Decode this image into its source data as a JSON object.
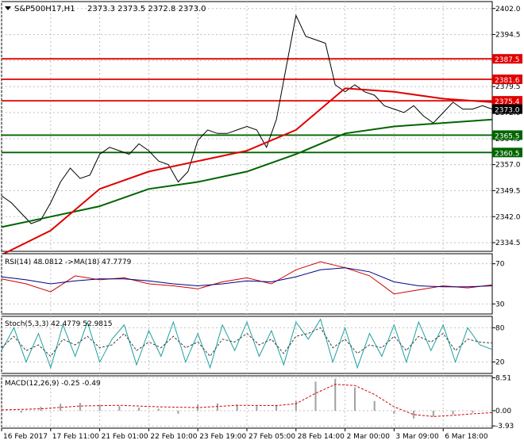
{
  "window_title": {
    "symbol_tf": "S&P500H17,H1",
    "ohlc": "2373.3 2373.5 2372.8 2373.0"
  },
  "chart_data": [
    {
      "type": "line",
      "panel": "price",
      "ylim": [
        2332,
        2404
      ],
      "yticks": [
        2402.0,
        2394.5,
        2387.0,
        2379.5,
        2372.0,
        2364.5,
        2357.0,
        2349.5,
        2342.0,
        2334.5
      ],
      "series": [
        {
          "key": "close",
          "color": "#000000",
          "x": [
            0,
            4,
            8,
            12,
            16,
            20,
            24,
            28,
            32,
            36,
            40,
            44,
            48,
            52,
            56,
            60,
            64,
            68,
            72,
            76,
            80,
            84,
            88,
            92,
            96,
            100,
            104,
            108,
            112,
            116,
            120,
            124,
            128,
            132,
            136,
            140,
            144,
            148,
            152,
            156,
            160,
            164,
            168,
            172,
            176,
            180,
            184,
            188,
            192,
            196,
            200
          ],
          "values": [
            2348,
            2346,
            2343,
            2340,
            2341,
            2346,
            2352,
            2356,
            2353,
            2354,
            2360,
            2362,
            2361,
            2360,
            2363,
            2361,
            2358,
            2357,
            2352,
            2355,
            2364,
            2367,
            2366,
            2366,
            2367,
            2368,
            2367,
            2362,
            2370,
            2385,
            2400,
            2394,
            2393,
            2392,
            2380,
            2378,
            2380,
            2378,
            2377,
            2374,
            2373,
            2372,
            2374,
            2371,
            2369,
            2372,
            2375,
            2373,
            2373,
            2374,
            2373
          ]
        },
        {
          "key": "sma_fast",
          "color": "#006400",
          "x": [
            0,
            20,
            40,
            60,
            80,
            100,
            120,
            140,
            160,
            180,
            200
          ],
          "values": [
            2339,
            2342,
            2345,
            2350,
            2352,
            2355,
            2360,
            2366,
            2368,
            2369,
            2370
          ]
        },
        {
          "key": "sma_mid",
          "color": "#e00000",
          "x": [
            0,
            20,
            40,
            60,
            80,
            100,
            120,
            140,
            160,
            180,
            200
          ],
          "values": [
            2331,
            2338,
            2350,
            2355,
            2358,
            2361,
            2367,
            2379,
            2378,
            2376,
            2375
          ]
        }
      ],
      "hlines": [
        {
          "value": 2387.5,
          "label": "2387.5",
          "color": "#e00000"
        },
        {
          "value": 2381.6,
          "label": "2381.6",
          "color": "#e00000"
        },
        {
          "value": 2375.4,
          "label": "2375.4",
          "color": "#e00000"
        },
        {
          "value": 2365.5,
          "label": "2365.5",
          "color": "#006400"
        },
        {
          "value": 2360.5,
          "label": "2360.5",
          "color": "#006400"
        }
      ],
      "current_price": {
        "value": 2373.0,
        "label": "2373.0"
      }
    },
    {
      "type": "line",
      "panel": "rsi",
      "label": "RSI(14) 48.0812 ->MA(18) 47.7779",
      "ylim": [
        20,
        80
      ],
      "yticks": [
        70,
        30
      ],
      "series": [
        {
          "key": "rsi",
          "color": "#d00000",
          "x": [
            0,
            10,
            20,
            30,
            40,
            50,
            60,
            70,
            80,
            90,
            100,
            110,
            120,
            130,
            140,
            150,
            160,
            170,
            180,
            190,
            200
          ],
          "values": [
            55,
            50,
            42,
            58,
            54,
            56,
            50,
            48,
            45,
            52,
            56,
            50,
            64,
            72,
            66,
            58,
            40,
            44,
            48,
            46,
            49
          ]
        },
        {
          "key": "rsi_ma",
          "color": "#000080",
          "x": [
            0,
            10,
            20,
            30,
            40,
            50,
            60,
            70,
            80,
            90,
            100,
            110,
            120,
            130,
            140,
            150,
            160,
            170,
            180,
            190,
            200
          ],
          "values": [
            57,
            54,
            50,
            53,
            55,
            55,
            53,
            50,
            48,
            50,
            53,
            52,
            57,
            64,
            66,
            62,
            52,
            48,
            47,
            47,
            48
          ]
        }
      ]
    },
    {
      "type": "line",
      "panel": "stoch",
      "label": "Stoch(5,3,3) 42.4779 52.9815",
      "ylim": [
        0,
        100
      ],
      "yticks": [
        80,
        20
      ],
      "series": [
        {
          "key": "k",
          "color": "#20a0a0",
          "x": [
            0,
            5,
            10,
            15,
            20,
            25,
            30,
            35,
            40,
            45,
            50,
            55,
            60,
            65,
            70,
            75,
            80,
            85,
            90,
            95,
            100,
            105,
            110,
            115,
            120,
            125,
            130,
            135,
            140,
            145,
            150,
            155,
            160,
            165,
            170,
            175,
            180,
            185,
            190,
            195,
            200
          ],
          "values": [
            40,
            80,
            20,
            70,
            10,
            85,
            30,
            90,
            20,
            60,
            85,
            15,
            75,
            30,
            90,
            20,
            70,
            10,
            85,
            40,
            90,
            30,
            75,
            15,
            90,
            60,
            95,
            20,
            80,
            10,
            70,
            30,
            85,
            20,
            90,
            40,
            85,
            20,
            80,
            50,
            42
          ]
        },
        {
          "key": "d",
          "color": "#404040",
          "x": [
            0,
            5,
            10,
            15,
            20,
            25,
            30,
            35,
            40,
            45,
            50,
            55,
            60,
            65,
            70,
            75,
            80,
            85,
            90,
            95,
            100,
            105,
            110,
            115,
            120,
            125,
            130,
            135,
            140,
            145,
            150,
            155,
            160,
            165,
            170,
            175,
            180,
            185,
            190,
            195,
            200
          ],
          "values": [
            45,
            65,
            40,
            50,
            30,
            60,
            50,
            65,
            45,
            50,
            70,
            40,
            55,
            45,
            65,
            45,
            55,
            30,
            60,
            55,
            70,
            50,
            60,
            35,
            65,
            70,
            80,
            45,
            60,
            35,
            50,
            45,
            65,
            40,
            65,
            55,
            70,
            40,
            60,
            55,
            53
          ]
        }
      ]
    },
    {
      "type": "bar",
      "panel": "macd",
      "label": "MACD(12,26,9) -0.25 -0.49",
      "ylim": [
        -4.5,
        9
      ],
      "yticks": [
        8.51,
        0.0,
        -3.93
      ],
      "series": [
        {
          "key": "hist",
          "color": "#a0a0a0",
          "x": [
            0,
            8,
            16,
            24,
            32,
            40,
            48,
            56,
            64,
            72,
            80,
            88,
            96,
            104,
            112,
            120,
            128,
            136,
            144,
            152,
            160,
            168,
            176,
            184,
            192,
            200
          ],
          "values": [
            0.5,
            -0.5,
            1.0,
            1.8,
            2.0,
            1.5,
            1.2,
            0.8,
            0.5,
            -0.8,
            1.6,
            1.9,
            1.6,
            1.2,
            1.5,
            2.5,
            7.5,
            8.2,
            6.0,
            2.5,
            -0.8,
            -2.0,
            -1.5,
            -1.0,
            -0.5,
            -0.25
          ]
        },
        {
          "key": "signal",
          "color": "#d00000",
          "x": [
            0,
            16,
            32,
            48,
            64,
            80,
            96,
            112,
            120,
            128,
            136,
            144,
            152,
            160,
            168,
            176,
            184,
            192,
            200
          ],
          "values": [
            0.2,
            0.5,
            1.2,
            1.4,
            1.0,
            0.8,
            1.4,
            1.3,
            1.8,
            4.5,
            6.8,
            6.5,
            4.2,
            1.0,
            -1.0,
            -1.5,
            -1.2,
            -0.8,
            -0.49
          ]
        }
      ]
    }
  ],
  "xaxis": {
    "xlim": [
      0,
      200
    ],
    "ticks": [
      {
        "x": 0,
        "label": "16 Feb 2017"
      },
      {
        "x": 20,
        "label": "17 Feb 11:00"
      },
      {
        "x": 40,
        "label": "21 Feb 01:00"
      },
      {
        "x": 60,
        "label": "22 Feb 10:00"
      },
      {
        "x": 80,
        "label": "23 Feb 19:00"
      },
      {
        "x": 100,
        "label": "27 Feb 05:00"
      },
      {
        "x": 120,
        "label": "28 Feb 14:00"
      },
      {
        "x": 140,
        "label": "2 Mar 00:00"
      },
      {
        "x": 160,
        "label": "3 Mar 09:00"
      },
      {
        "x": 180,
        "label": "6 Mar 18:00"
      }
    ]
  },
  "colors": {
    "grid": "#c0c0c0",
    "frame": "#000000",
    "resistance": "#e00000",
    "support": "#006400"
  }
}
